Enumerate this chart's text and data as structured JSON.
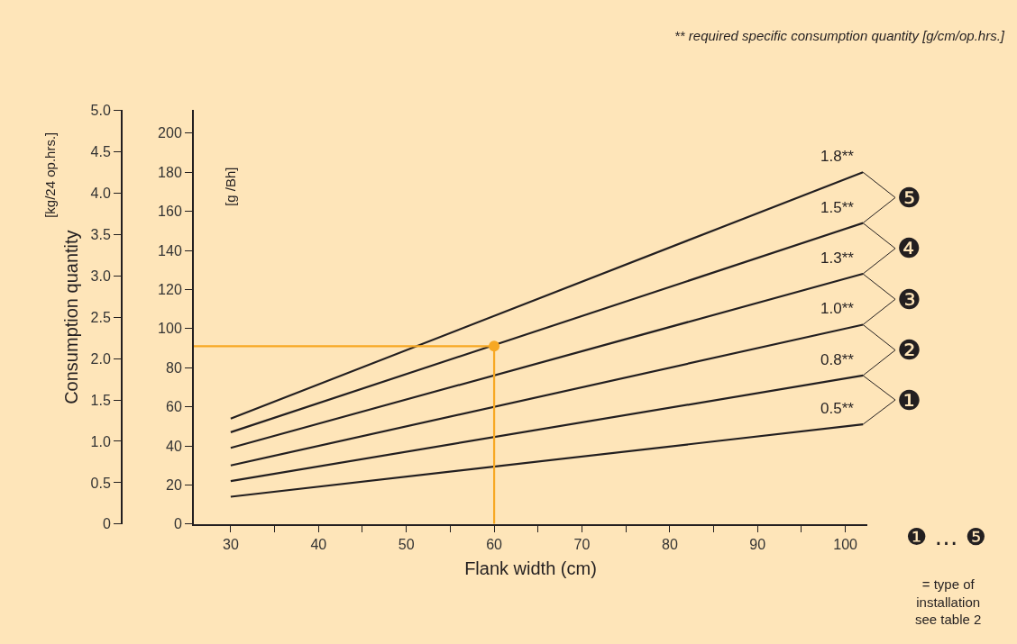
{
  "chart_data": {
    "type": "line",
    "xlabel": "Flank width (cm)",
    "ylabel": "[g /Bh]",
    "y2label": "Consumption quantity",
    "annotations": [
      "** required specific consumption quantity [g/cm/op.hrs.]",
      "❶",
      "❷",
      "❸",
      "❹",
      "❺",
      "❶ … ❺",
      "= type of\ninstallation\nsee table 2",
      "[kg/24 op.hrs.]"
    ],
    "series": [
      {
        "name": "0.5**",
        "color": "#231f20",
        "x": [
          30,
          102
        ],
        "values": [
          14,
          51
        ]
      },
      {
        "name": "0.8**",
        "color": "#231f20",
        "x": [
          30,
          102
        ],
        "values": [
          22,
          76
        ]
      },
      {
        "name": "1.0**",
        "color": "#231f20",
        "x": [
          30,
          102
        ],
        "values": [
          30,
          102
        ]
      },
      {
        "name": "1.3**",
        "color": "#231f20",
        "x": [
          30,
          102
        ],
        "values": [
          39,
          128
        ]
      },
      {
        "name": "1.5**",
        "color": "#231f20",
        "x": [
          30,
          102
        ],
        "values": [
          47,
          154
        ]
      },
      {
        "name": "1.8**",
        "color": "#231f20",
        "x": [
          30,
          102
        ],
        "values": [
          54,
          180
        ]
      },
      {
        "color": "#f7a823",
        "x": [
          25.8,
          60,
          60
        ],
        "values": [
          91,
          91,
          0
        ]
      },
      {
        "type": "scatter",
        "color": "#f7a823",
        "x": [
          60
        ],
        "values": [
          91
        ],
        "marker": "circle"
      }
    ],
    "xlim": [
      25.8,
      102.5
    ],
    "xticks": [
      30,
      {
        "value": 35,
        "label": null
      },
      40,
      {
        "value": 45,
        "label": null
      },
      50,
      {
        "value": 55,
        "label": null
      },
      60,
      {
        "value": 65,
        "label": null
      },
      70,
      {
        "value": 75,
        "label": null
      },
      80,
      {
        "value": 85,
        "label": null
      },
      90,
      {
        "value": 95,
        "label": null
      },
      100
    ],
    "ylim": [
      0,
      211.7
    ],
    "yticks": [
      0,
      20,
      40,
      60,
      80,
      100,
      120,
      140,
      160,
      180,
      200
    ],
    "y2lim": [
      0,
      5.0
    ],
    "y2ticks": [
      0,
      0.5,
      {
        "value": 1,
        "label": "1.0"
      },
      1.5,
      {
        "value": 2,
        "label": "2.0"
      },
      2.5,
      {
        "value": 3,
        "label": "3.0"
      },
      3.5,
      {
        "value": 4,
        "label": "4.0"
      },
      4.5,
      {
        "value": 5,
        "label": "5.0"
      }
    ],
    "grid": false,
    "legend": "right"
  }
}
